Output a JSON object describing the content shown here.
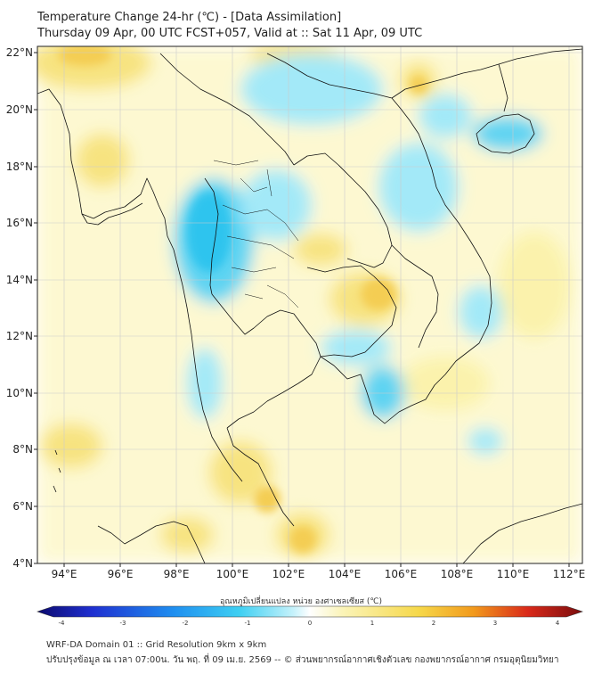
{
  "header": {
    "title_line1": "Temperature Change 24-hr (℃) - [Data Assimilation]",
    "title_line2": "Thursday 09 Apr, 00 UTC FCST+057, Valid at :: Sat 11 Apr, 09 UTC"
  },
  "map": {
    "lon_labels": [
      "94°E",
      "96°E",
      "98°E",
      "100°E",
      "102°E",
      "104°E",
      "106°E",
      "108°E",
      "110°E",
      "112°E"
    ],
    "lat_labels": [
      "22°N",
      "20°N",
      "18°N",
      "16°N",
      "14°N",
      "12°N",
      "10°N",
      "8°N",
      "6°N",
      "4°N"
    ],
    "colors": {
      "cool_light": "#9fe8f8",
      "cool": "#56d2f2",
      "cool_strong": "#2fc4ee",
      "warm_light": "#fbf2a8",
      "warm": "#f7e27a",
      "warm_strong": "#f4cd52",
      "border": "#111111",
      "grid": "#cccccc"
    }
  },
  "colorbar": {
    "label": "อุณหภูมิเปลี่ยนแปลง หน่วย องศาเซลเซียส (℃)",
    "ticks": [
      "-4",
      "-3",
      "-2",
      "-1",
      "0",
      "1",
      "2",
      "3",
      "4"
    ],
    "stops": [
      "#0c0a6e",
      "#1f2fd0",
      "#1f8ff0",
      "#3ecff2",
      "#c6f2fb",
      "#ffffff",
      "#fbf4b8",
      "#f6d84a",
      "#f29a1c",
      "#d9291a",
      "#7a0d0d"
    ]
  },
  "footer": {
    "line1": "WRF-DA Domain 01 :: Grid Resolution 9km x 9km",
    "line2": "ปรับปรุงข้อมูล ณ เวลา 07:00น. วัน พฤ. ที่ 09 เม.ย. 2569 -- © ส่วนพยากรณ์อากาศเชิงตัวเลข กองพยากรณ์อากาศ กรมอุตุนิยมวิทยา"
  }
}
